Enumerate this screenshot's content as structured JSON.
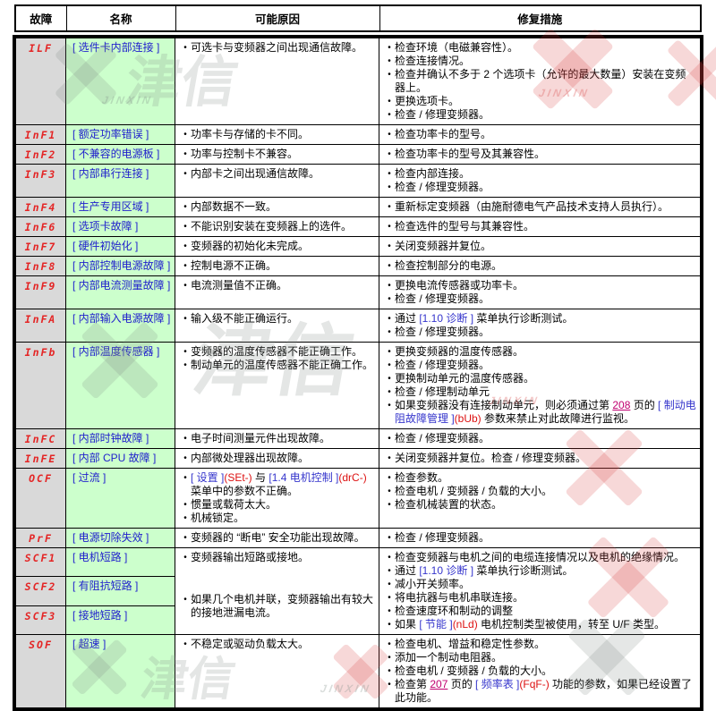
{
  "table": {
    "columns": [
      "故障",
      "名称",
      "可能原因",
      "修复措施"
    ],
    "rows": [
      {
        "code": "ILF",
        "name": "[ 选件卡内部连接 ]",
        "causes": [
          {
            "s": [
              [
                "可选卡与变频器之间出现通信故障。",
                "p"
              ]
            ]
          }
        ],
        "fixes": [
          {
            "s": [
              [
                "检查环境（电磁兼容性）。",
                "p"
              ]
            ]
          },
          {
            "s": [
              [
                "检查连接情况。",
                "p"
              ]
            ]
          },
          {
            "s": [
              [
                "检查并确认不多于 2 个选项卡（允许的最大数量）安装在变频器上。",
                "p"
              ]
            ]
          },
          {
            "s": [
              [
                "更换选项卡。",
                "p"
              ]
            ]
          },
          {
            "s": [
              [
                "检查 / 修理变频器。",
                "p"
              ]
            ]
          }
        ]
      },
      {
        "code": "InF1",
        "name": "[ 额定功率错误 ]",
        "causes": [
          {
            "s": [
              [
                "功率卡与存储的卡不同。",
                "p"
              ]
            ]
          }
        ],
        "fixes": [
          {
            "s": [
              [
                "检查功率卡的型号。",
                "p"
              ]
            ]
          }
        ]
      },
      {
        "code": "InF2",
        "name": "[ 不兼容的电源板 ]",
        "causes": [
          {
            "s": [
              [
                "功率与控制卡不兼容。",
                "p"
              ]
            ]
          }
        ],
        "fixes": [
          {
            "s": [
              [
                "检查功率卡的型号及其兼容性。",
                "p"
              ]
            ]
          }
        ]
      },
      {
        "code": "InF3",
        "name": "[ 内部串行连接 ]",
        "causes": [
          {
            "s": [
              [
                "内部卡之间出现通信故障。",
                "p"
              ]
            ]
          }
        ],
        "fixes": [
          {
            "s": [
              [
                "检查内部连接。",
                "p"
              ]
            ]
          },
          {
            "s": [
              [
                "检查 / 修理变频器。",
                "p"
              ]
            ]
          }
        ]
      },
      {
        "code": "InF4",
        "name": "[ 生产专用区域 ]",
        "causes": [
          {
            "s": [
              [
                "内部数据不一致。",
                "p"
              ]
            ]
          }
        ],
        "fixes": [
          {
            "s": [
              [
                "重新标定变频器（由施耐德电气产品技术支持人员执行）。",
                "p"
              ]
            ]
          }
        ]
      },
      {
        "code": "InF6",
        "name": "[ 选项卡故障 ]",
        "causes": [
          {
            "s": [
              [
                "不能识别安装在变频器上的选件。",
                "p"
              ]
            ]
          }
        ],
        "fixes": [
          {
            "s": [
              [
                "检查选件的型号与其兼容性。",
                "p"
              ]
            ]
          }
        ]
      },
      {
        "code": "InF7",
        "name": "[ 硬件初始化 ]",
        "causes": [
          {
            "s": [
              [
                "变频器的初始化未完成。",
                "p"
              ]
            ]
          }
        ],
        "fixes": [
          {
            "s": [
              [
                "关闭变频器并复位。",
                "p"
              ]
            ]
          }
        ]
      },
      {
        "code": "InF8",
        "name": "[ 内部控制电源故障 ]",
        "causes": [
          {
            "s": [
              [
                "控制电源不正确。",
                "p"
              ]
            ]
          }
        ],
        "fixes": [
          {
            "s": [
              [
                "检查控制部分的电源。",
                "p"
              ]
            ]
          }
        ]
      },
      {
        "code": "InF9",
        "name": "[ 内部电流测量故障 ]",
        "causes": [
          {
            "s": [
              [
                "电流测量值不正确。",
                "p"
              ]
            ]
          }
        ],
        "fixes": [
          {
            "s": [
              [
                "更换电流传感器或功率卡。",
                "p"
              ]
            ]
          },
          {
            "s": [
              [
                "检查 / 修理变频器。",
                "p"
              ]
            ]
          }
        ]
      },
      {
        "code": "InFA",
        "name": "[ 内部输入电源故障 ]",
        "causes": [
          {
            "s": [
              [
                "输入级不能正确运行。",
                "p"
              ]
            ]
          }
        ],
        "fixes": [
          {
            "s": [
              [
                "通过 ",
                "p"
              ],
              [
                "[1.10 诊断 ]",
                "b"
              ],
              [
                " 菜单执行诊断测试。",
                "p"
              ]
            ]
          },
          {
            "s": [
              [
                "检查 / 修理变频器。",
                "p"
              ]
            ]
          }
        ]
      },
      {
        "code": "InFb",
        "name": "[ 内部温度传感器 ]",
        "causes": [
          {
            "s": [
              [
                "变频器的温度传感器不能正确工作。",
                "p"
              ]
            ]
          },
          {
            "s": [
              [
                "制动单元的温度传感器不能正确工作。",
                "p"
              ]
            ]
          }
        ],
        "fixes": [
          {
            "s": [
              [
                "更换变频器的温度传感器。",
                "p"
              ]
            ]
          },
          {
            "s": [
              [
                "检查 / 修理变频器。",
                "p"
              ]
            ]
          },
          {
            "s": [
              [
                "更换制动单元的温度传感器。",
                "p"
              ]
            ]
          },
          {
            "s": [
              [
                "检查 / 修理制动单元",
                "p"
              ]
            ]
          },
          {
            "s": [
              [
                "如果变频器没有连接制动单元，则必须通过第 ",
                "p"
              ],
              [
                "208",
                "l"
              ],
              [
                " 页的 ",
                "p"
              ],
              [
                "[ 制动电阻故障管理 ]",
                "b"
              ],
              [
                "(bUb)",
                "r"
              ],
              [
                " 参数来禁止对此故障进行监视。",
                "p"
              ]
            ]
          }
        ]
      },
      {
        "code": "InFC",
        "name": "[ 内部时钟故障 ]",
        "causes": [
          {
            "s": [
              [
                "电子时间测量元件出现故障。",
                "p"
              ]
            ]
          }
        ],
        "fixes": [
          {
            "s": [
              [
                "检查 / 修理变频器。",
                "p"
              ]
            ]
          }
        ]
      },
      {
        "code": "InFE",
        "name": "[ 内部 CPU 故障 ]",
        "causes": [
          {
            "s": [
              [
                "内部微处理器出现故障。",
                "p"
              ]
            ]
          }
        ],
        "fixes": [
          {
            "s": [
              [
                "关闭变频器并复位。检查 / 修理变频器。",
                "p"
              ]
            ]
          }
        ]
      },
      {
        "code": "OCF",
        "name": "[ 过流 ]",
        "causes": [
          {
            "s": [
              [
                "[ 设置 ]",
                "b"
              ],
              [
                "(SEt-)",
                "r"
              ],
              [
                " 与 ",
                "p"
              ],
              [
                "[1.4 电机控制 ]",
                "b"
              ],
              [
                "(drC-)",
                "r"
              ],
              [
                " 菜单中的参数不正确。",
                "p"
              ]
            ]
          },
          {
            "s": [
              [
                "惯量或载荷太大。",
                "p"
              ]
            ]
          },
          {
            "s": [
              [
                "机械锁定。",
                "p"
              ]
            ]
          }
        ],
        "fixes": [
          {
            "s": [
              [
                "检查参数。",
                "p"
              ]
            ]
          },
          {
            "s": [
              [
                "检查电机 / 变频器 / 负载的大小。",
                "p"
              ]
            ]
          },
          {
            "s": [
              [
                "检查机械装置的状态。",
                "p"
              ]
            ]
          }
        ]
      },
      {
        "code": "PrF",
        "name": "[ 电源切除失效 ]",
        "causes": [
          {
            "s": [
              [
                "变频器的 “断电” 安全功能出现故障。",
                "p"
              ]
            ]
          }
        ],
        "fixes": [
          {
            "s": [
              [
                "检查 / 修理变频器。",
                "p"
              ]
            ]
          }
        ]
      },
      {
        "code": "SCF1",
        "name": "[ 电机短路 ]",
        "cspan": 3,
        "fspan": 3,
        "causes": [
          {
            "s": [
              [
                "变频器输出短路或接地。",
                "p"
              ]
            ]
          },
          {
            "g": 1,
            "s": [
              [
                "如果几个电机并联，变频器输出有较大的接地泄漏电流。",
                "p"
              ]
            ]
          }
        ],
        "fixes": [
          {
            "s": [
              [
                "检查变频器与电机之间的电缆连接情况以及电机的绝缘情况。",
                "p"
              ]
            ]
          },
          {
            "s": [
              [
                "通过 ",
                "p"
              ],
              [
                "[1.10 诊断 ]",
                "b"
              ],
              [
                " 菜单执行诊断测试。",
                "p"
              ]
            ]
          },
          {
            "s": [
              [
                "减小开关频率。",
                "p"
              ]
            ]
          },
          {
            "s": [
              [
                "将电抗器与电机串联连接。",
                "p"
              ]
            ]
          },
          {
            "s": [
              [
                "检查速度环和制动的调整",
                "p"
              ]
            ]
          },
          {
            "s": [
              [
                "如果 ",
                "p"
              ],
              [
                "[ 节能 ]",
                "b"
              ],
              [
                "(nLd)",
                "r"
              ],
              [
                " 电机控制类型被使用，转至 U/F 类型。",
                "p"
              ]
            ]
          }
        ]
      },
      {
        "code": "SCF2",
        "name": "[ 有阻抗短路 ]",
        "causes": null,
        "fixes": null
      },
      {
        "code": "SCF3",
        "name": "[ 接地短路 ]",
        "causes": null,
        "fixes": null
      },
      {
        "code": "SOF",
        "name": "[ 超速 ]",
        "causes": [
          {
            "s": [
              [
                "不稳定或驱动负载太大。",
                "p"
              ]
            ]
          }
        ],
        "fixes": [
          {
            "s": [
              [
                "检查电机、增益和稳定性参数。",
                "p"
              ]
            ]
          },
          {
            "s": [
              [
                "添加一个制动电阻器。",
                "p"
              ]
            ]
          },
          {
            "s": [
              [
                "检查电机 / 变频器 / 负载的大小。",
                "p"
              ]
            ]
          },
          {
            "s": [
              [
                "检查第 ",
                "p"
              ],
              [
                "207",
                "l"
              ],
              [
                " 页的 ",
                "p"
              ],
              [
                "[ 频率表 ]",
                "b"
              ],
              [
                "(FqF-)",
                "r"
              ],
              [
                " 功能的参数，如果已经设置了此功能。",
                "p"
              ]
            ]
          }
        ]
      }
    ]
  },
  "watermark": {
    "cn": "津信",
    "en": "JINXIN"
  }
}
